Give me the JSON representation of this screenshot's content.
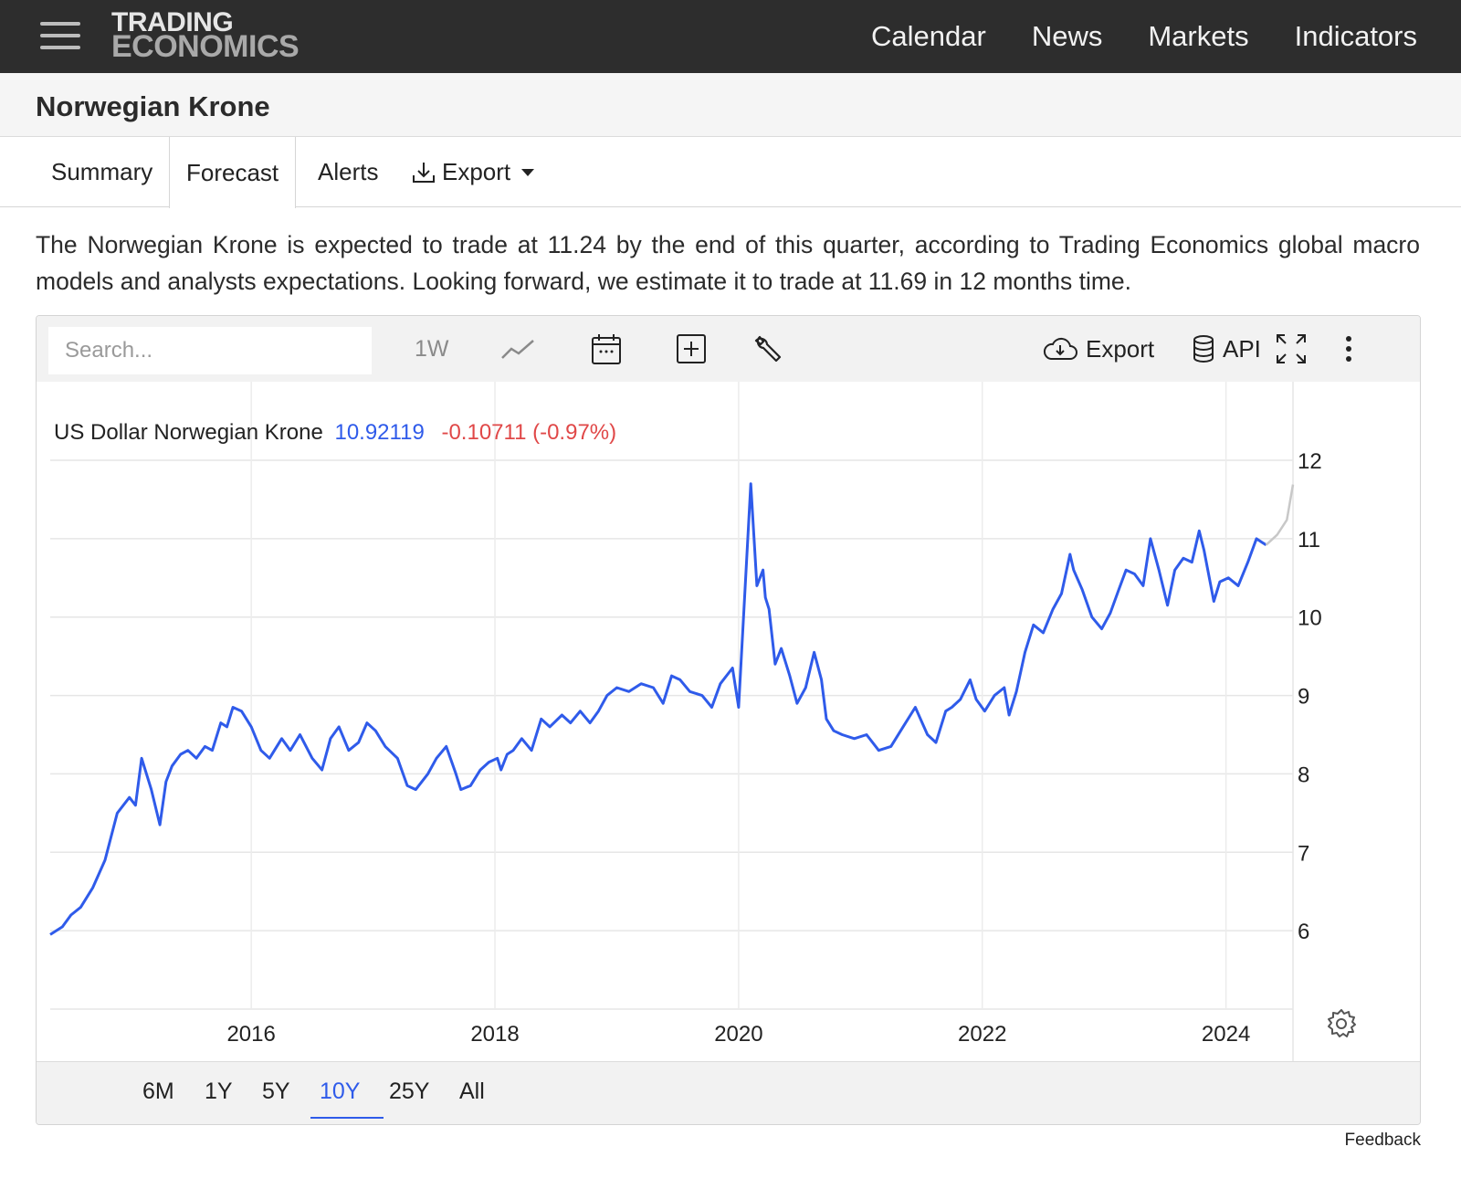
{
  "topnav": {
    "logo_line1": "TRADING",
    "logo_line2": "ECONOMICS",
    "links": [
      "Calendar",
      "News",
      "Markets",
      "Indicators"
    ]
  },
  "page_title": "Norwegian Krone",
  "tabs": {
    "summary": "Summary",
    "forecast": "Forecast",
    "alerts": "Alerts",
    "export": "Export"
  },
  "description": "The Norwegian Krone is expected to trade at 11.24 by the end of this quarter, according to Trading Economics global macro models and analysts expectations. Looking forward, we estimate it to trade at 11.69 in 12 months time.",
  "toolbar": {
    "search_placeholder": "Search...",
    "interval": "1W",
    "export_label": "Export",
    "api_label": "API"
  },
  "legend": {
    "name": "US Dollar Norwegian Krone",
    "value": "10.92119",
    "change": "-0.10711 (-0.97%)"
  },
  "ranges": [
    "6M",
    "1Y",
    "5Y",
    "10Y",
    "25Y",
    "All"
  ],
  "active_range": "10Y",
  "feedback": "Feedback",
  "colors": {
    "series": "#2f5bea",
    "forecast": "#c8c8c8",
    "change_negative": "#e04848",
    "nav_bg": "#2d2d2d"
  },
  "chart_data": {
    "type": "line",
    "xlim": [
      2014.35,
      2024.55
    ],
    "ylim": [
      5,
      12.5
    ],
    "y_ticks": [
      6,
      7,
      8,
      9,
      10,
      11,
      12
    ],
    "x_ticks": [
      2016,
      2018,
      2020,
      2022,
      2024
    ],
    "grid": true,
    "series": [
      {
        "name": "US Dollar Norwegian Krone",
        "x": [
          2014.35,
          2014.45,
          2014.52,
          2014.6,
          2014.7,
          2014.8,
          2014.9,
          2015.0,
          2015.05,
          2015.1,
          2015.18,
          2015.25,
          2015.3,
          2015.35,
          2015.42,
          2015.48,
          2015.55,
          2015.62,
          2015.68,
          2015.75,
          2015.8,
          2015.85,
          2015.92,
          2016.0,
          2016.08,
          2016.15,
          2016.25,
          2016.32,
          2016.4,
          2016.5,
          2016.58,
          2016.65,
          2016.72,
          2016.8,
          2016.88,
          2016.95,
          2017.02,
          2017.1,
          2017.2,
          2017.28,
          2017.35,
          2017.45,
          2017.52,
          2017.6,
          2017.68,
          2017.72,
          2017.8,
          2017.88,
          2017.95,
          2018.02,
          2018.05,
          2018.1,
          2018.15,
          2018.22,
          2018.3,
          2018.38,
          2018.45,
          2018.55,
          2018.62,
          2018.7,
          2018.78,
          2018.85,
          2018.92,
          2019.0,
          2019.1,
          2019.2,
          2019.3,
          2019.38,
          2019.45,
          2019.52,
          2019.6,
          2019.7,
          2019.78,
          2019.85,
          2019.95,
          2020.0,
          2020.1,
          2020.15,
          2020.2,
          2020.22,
          2020.25,
          2020.3,
          2020.35,
          2020.42,
          2020.48,
          2020.55,
          2020.62,
          2020.68,
          2020.72,
          2020.78,
          2020.85,
          2020.95,
          2021.05,
          2021.15,
          2021.25,
          2021.35,
          2021.45,
          2021.55,
          2021.62,
          2021.7,
          2021.75,
          2021.82,
          2021.9,
          2021.95,
          2022.02,
          2022.1,
          2022.18,
          2022.22,
          2022.28,
          2022.35,
          2022.42,
          2022.5,
          2022.58,
          2022.65,
          2022.72,
          2022.75,
          2022.82,
          2022.9,
          2022.98,
          2023.05,
          2023.12,
          2023.18,
          2023.25,
          2023.32,
          2023.38,
          2023.45,
          2023.52,
          2023.58,
          2023.65,
          2023.72,
          2023.78,
          2023.82,
          2023.9,
          2023.95,
          2024.02,
          2024.1,
          2024.18,
          2024.25,
          2024.3,
          2024.33
        ],
        "y": [
          5.95,
          6.05,
          6.2,
          6.3,
          6.55,
          6.9,
          7.5,
          7.7,
          7.6,
          8.2,
          7.8,
          7.35,
          7.9,
          8.1,
          8.25,
          8.3,
          8.2,
          8.35,
          8.3,
          8.65,
          8.6,
          8.85,
          8.8,
          8.6,
          8.3,
          8.2,
          8.45,
          8.3,
          8.5,
          8.2,
          8.05,
          8.45,
          8.6,
          8.3,
          8.4,
          8.65,
          8.55,
          8.35,
          8.2,
          7.85,
          7.8,
          8.0,
          8.2,
          8.35,
          8.0,
          7.8,
          7.85,
          8.05,
          8.15,
          8.2,
          8.05,
          8.25,
          8.3,
          8.45,
          8.3,
          8.7,
          8.6,
          8.75,
          8.65,
          8.8,
          8.65,
          8.8,
          9.0,
          9.1,
          9.05,
          9.15,
          9.1,
          8.9,
          9.25,
          9.2,
          9.05,
          9.0,
          8.85,
          9.15,
          9.35,
          8.85,
          11.7,
          10.4,
          10.6,
          10.25,
          10.1,
          9.4,
          9.6,
          9.25,
          8.9,
          9.1,
          9.55,
          9.2,
          8.7,
          8.55,
          8.5,
          8.45,
          8.5,
          8.3,
          8.35,
          8.6,
          8.85,
          8.5,
          8.4,
          8.8,
          8.85,
          8.95,
          9.2,
          8.95,
          8.8,
          9.0,
          9.1,
          8.75,
          9.05,
          9.55,
          9.9,
          9.8,
          10.1,
          10.3,
          10.8,
          10.6,
          10.35,
          10.0,
          9.85,
          10.05,
          10.35,
          10.6,
          10.55,
          10.4,
          11.0,
          10.6,
          10.15,
          10.6,
          10.75,
          10.7,
          11.1,
          10.85,
          10.2,
          10.45,
          10.5,
          10.4,
          10.7,
          11.0,
          10.95,
          10.92
        ]
      },
      {
        "name": "Forecast",
        "x": [
          2024.33,
          2024.42,
          2024.5,
          2024.55
        ],
        "y": [
          10.92,
          11.05,
          11.24,
          11.69
        ]
      }
    ]
  }
}
